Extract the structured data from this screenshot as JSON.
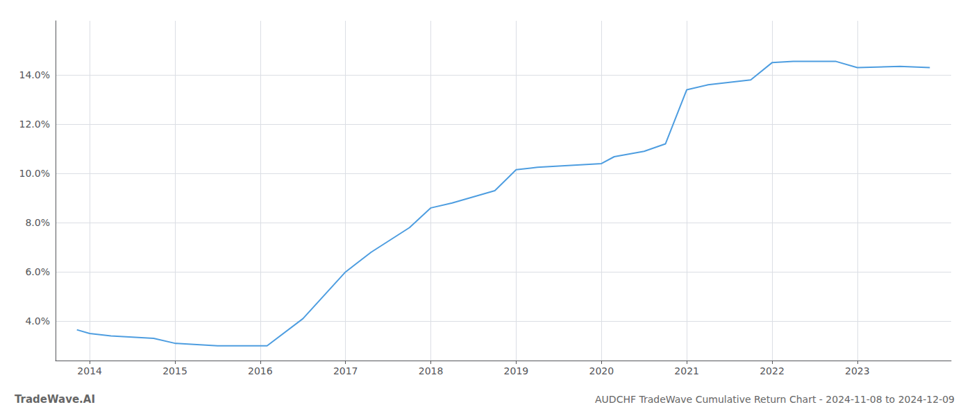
{
  "chart_data": {
    "type": "line",
    "title": "AUDCHF TradeWave Cumulative Return Chart - 2024-11-08 to 2024-12-09",
    "annotations": [
      "TradeWave.AI"
    ],
    "x": [
      2013.85,
      2014.0,
      2014.25,
      2014.75,
      2015.0,
      2015.5,
      2016.0,
      2016.08,
      2016.5,
      2017.0,
      2017.3,
      2017.75,
      2018.0,
      2018.25,
      2018.75,
      2019.0,
      2019.25,
      2019.5,
      2019.75,
      2020.0,
      2020.15,
      2020.5,
      2020.75,
      2021.0,
      2021.25,
      2021.5,
      2021.75,
      2022.0,
      2022.25,
      2022.5,
      2022.75,
      2023.0,
      2023.5,
      2023.85
    ],
    "values": [
      0.0365,
      0.035,
      0.034,
      0.033,
      0.031,
      0.03,
      0.03,
      0.03,
      0.041,
      0.06,
      0.068,
      0.078,
      0.086,
      0.088,
      0.093,
      0.1015,
      0.1025,
      0.103,
      0.1035,
      0.104,
      0.1068,
      0.109,
      0.112,
      0.134,
      0.136,
      0.137,
      0.138,
      0.145,
      0.1455,
      0.1455,
      0.1455,
      0.143,
      0.1435,
      0.143
    ],
    "color": "#4d9de0",
    "xlim": [
      2013.6,
      2024.1
    ],
    "ylim": [
      0.024,
      0.162
    ],
    "xticks": [
      2014,
      2015,
      2016,
      2017,
      2018,
      2019,
      2020,
      2021,
      2022,
      2023
    ],
    "yticks": [
      {
        "value": 0.04,
        "label": "4.0%"
      },
      {
        "value": 0.06,
        "label": "6.0%"
      },
      {
        "value": 0.08,
        "label": "8.0%"
      },
      {
        "value": 0.1,
        "label": "10.0%"
      },
      {
        "value": 0.12,
        "label": "12.0%"
      },
      {
        "value": 0.14,
        "label": "14.0%"
      }
    ],
    "grid": true
  }
}
